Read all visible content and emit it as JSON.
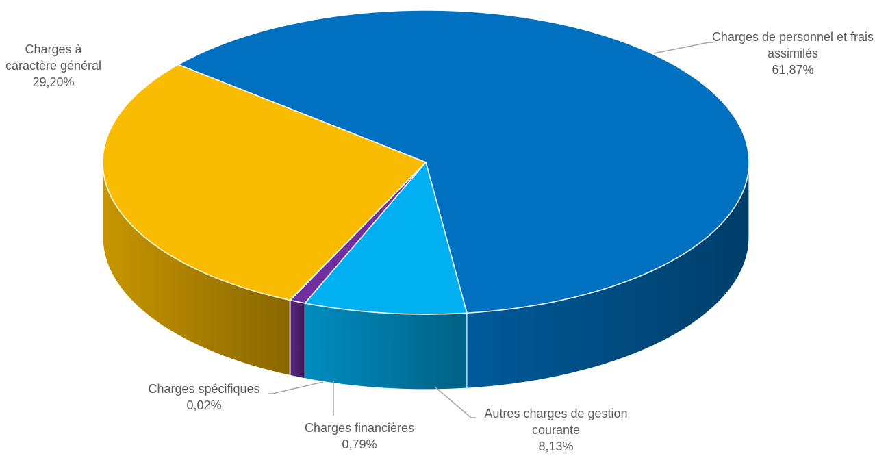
{
  "chart_data": {
    "type": "pie3d",
    "categories": [
      "Charges de personnel et frais assimilés",
      "Autres charges de gestion courante",
      "Charges financières",
      "Charges spécifiques",
      "Charges à caractère général"
    ],
    "values": [
      61.87,
      8.13,
      0.79,
      0.02,
      29.2
    ],
    "value_labels": [
      "61,87%",
      "8,13%",
      "0,79%",
      "0,02%",
      "29,20%"
    ],
    "colors": [
      "#0070c0",
      "#00b0f0",
      "#7030a0",
      "#a6a6a6",
      "#f9bc00"
    ]
  }
}
